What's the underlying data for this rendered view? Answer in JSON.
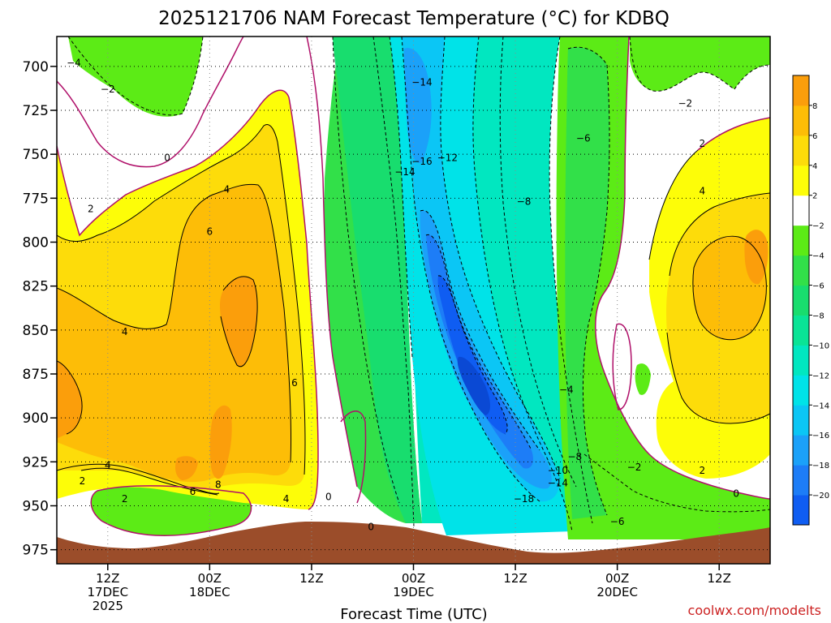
{
  "title": "2025121706 NAM Forecast Temperature (°C) for KDBQ",
  "xlabel": "Forecast Time (UTC)",
  "credit": "coolwx.com/modelts",
  "colors": {
    "terrain": "#9b4d2a",
    "freezing_line": "#b0106a",
    "credit": "#cc2222"
  },
  "chart_data": {
    "type": "heatmap",
    "title": "2025121706 NAM Forecast Temperature (°C) for KDBQ",
    "xlabel": "Forecast Time (UTC)",
    "ylabel": "",
    "yaxis": {
      "units": "hPa",
      "inverted": true,
      "ylim": [
        983,
        683
      ]
    },
    "xaxis": {
      "units": "hours after 2025121706",
      "xlim": [
        0,
        84
      ]
    },
    "y_ticks": [
      700,
      725,
      750,
      775,
      800,
      825,
      850,
      875,
      900,
      925,
      950,
      975
    ],
    "x_ticks": [
      {
        "t": 6,
        "line1": "12Z",
        "line2": "17DEC",
        "line3": "2025"
      },
      {
        "t": 18,
        "line1": "00Z",
        "line2": "18DEC",
        "line3": ""
      },
      {
        "t": 30,
        "line1": "12Z",
        "line2": "",
        "line3": ""
      },
      {
        "t": 42,
        "line1": "00Z",
        "line2": "19DEC",
        "line3": ""
      },
      {
        "t": 54,
        "line1": "12Z",
        "line2": "",
        "line3": ""
      },
      {
        "t": 66,
        "line1": "00Z",
        "line2": "20DEC",
        "line3": ""
      },
      {
        "t": 78,
        "line1": "12Z",
        "line2": "",
        "line3": ""
      }
    ],
    "grid": true,
    "colorbar": {
      "levels": [
        -22,
        -20,
        -18,
        -16,
        -14,
        -12,
        -10,
        -8,
        -6,
        -4,
        -2,
        2,
        4,
        6,
        8,
        10
      ],
      "labels": [
        "-20",
        "-18",
        "-16",
        "-14",
        "-12",
        "-10",
        "-8",
        "-6",
        "-4",
        "-2",
        "2",
        "4",
        "6",
        "8"
      ],
      "colors": [
        "#0f5df2",
        "#1d7df7",
        "#1ba1f9",
        "#0bc6f5",
        "#00e3e8",
        "#01e7c0",
        "#09e496",
        "#18dd6e",
        "#32e049",
        "#5ceb16",
        "#ffffff",
        "#fdfd08",
        "#fddc0a",
        "#fdbd07",
        "#fb9e0b"
      ]
    },
    "contours": [
      {
        "t": 2,
        "p": 698,
        "value": -4
      },
      {
        "t": 6,
        "p": 713,
        "value": -2
      },
      {
        "t": 13,
        "p": 752,
        "value": 0
      },
      {
        "t": 4,
        "p": 781,
        "value": 2
      },
      {
        "t": 20,
        "p": 770,
        "value": 4
      },
      {
        "t": 18,
        "p": 794,
        "value": 6
      },
      {
        "t": 8,
        "p": 851,
        "value": 4
      },
      {
        "t": 28,
        "p": 880,
        "value": 6
      },
      {
        "t": 19,
        "p": 938,
        "value": 8
      },
      {
        "t": 16,
        "p": 942,
        "value": 6
      },
      {
        "t": 6,
        "p": 927,
        "value": 4
      },
      {
        "t": 3,
        "p": 936,
        "value": 2
      },
      {
        "t": 8,
        "p": 946,
        "value": 2
      },
      {
        "t": 27,
        "p": 946,
        "value": 4
      },
      {
        "t": 32,
        "p": 945,
        "value": 0
      },
      {
        "t": 37,
        "p": 962,
        "value": 0
      },
      {
        "t": 43,
        "p": 709,
        "value": -14
      },
      {
        "t": 43,
        "p": 754,
        "value": -16
      },
      {
        "t": 46,
        "p": 752,
        "value": -12
      },
      {
        "t": 41,
        "p": 760,
        "value": -14
      },
      {
        "t": 55,
        "p": 777,
        "value": -8
      },
      {
        "t": 62,
        "p": 741,
        "value": -6
      },
      {
        "t": 60,
        "p": 884,
        "value": -4
      },
      {
        "t": 55,
        "p": 946,
        "value": -18
      },
      {
        "t": 59,
        "p": 937,
        "value": -14
      },
      {
        "t": 59,
        "p": 930,
        "value": -10
      },
      {
        "t": 61,
        "p": 922,
        "value": -8
      },
      {
        "t": 68,
        "p": 928,
        "value": -2
      },
      {
        "t": 66,
        "p": 959,
        "value": -6
      },
      {
        "t": 74,
        "p": 721,
        "value": -2
      },
      {
        "t": 76,
        "p": 744,
        "value": 2
      },
      {
        "t": 76,
        "p": 771,
        "value": 4
      },
      {
        "t": 76,
        "p": 930,
        "value": 2
      },
      {
        "t": 80,
        "p": 943,
        "value": 0
      }
    ]
  }
}
